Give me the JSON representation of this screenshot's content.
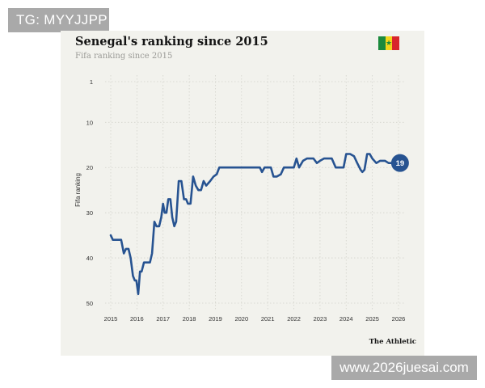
{
  "watermarks": {
    "top_left": "TG: MYYJJPP",
    "bottom_right": "www.2026juesai.com"
  },
  "brand": "The Athletic",
  "flag": {
    "stripes": [
      "#1a8a3c",
      "#f2d61b",
      "#d8262b"
    ],
    "star_color": "#1a8a3c"
  },
  "chart_data": {
    "type": "line",
    "title": "Senegal's ranking since 2015",
    "subtitle": "Fifa ranking since 2015",
    "xlabel": "",
    "ylabel": "Fifa ranking",
    "x_ticks": [
      "2015",
      "2016",
      "2017",
      "2018",
      "2019",
      "2020",
      "2021",
      "2022",
      "2023",
      "2024",
      "2025",
      "2026"
    ],
    "xlim": [
      2015,
      2026
    ],
    "y_ticks": [
      1,
      10,
      20,
      30,
      40,
      50
    ],
    "ylim": [
      1,
      50
    ],
    "y_inverted": true,
    "grid": true,
    "line_color": "#275391",
    "end_label": "19",
    "series": [
      {
        "points": [
          [
            2015.0,
            35
          ],
          [
            2015.08,
            36
          ],
          [
            2015.3,
            36
          ],
          [
            2015.4,
            36
          ],
          [
            2015.5,
            39
          ],
          [
            2015.58,
            38
          ],
          [
            2015.68,
            38
          ],
          [
            2015.76,
            40
          ],
          [
            2015.85,
            44
          ],
          [
            2015.92,
            45
          ],
          [
            2015.98,
            45
          ],
          [
            2016.05,
            48
          ],
          [
            2016.12,
            43
          ],
          [
            2016.18,
            43
          ],
          [
            2016.27,
            41
          ],
          [
            2016.4,
            41
          ],
          [
            2016.5,
            41
          ],
          [
            2016.58,
            39
          ],
          [
            2016.67,
            32
          ],
          [
            2016.75,
            33
          ],
          [
            2016.85,
            33
          ],
          [
            2016.93,
            31
          ],
          [
            2017.0,
            28
          ],
          [
            2017.06,
            30
          ],
          [
            2017.13,
            30
          ],
          [
            2017.2,
            27
          ],
          [
            2017.28,
            27
          ],
          [
            2017.35,
            31
          ],
          [
            2017.43,
            33
          ],
          [
            2017.5,
            32
          ],
          [
            2017.6,
            23
          ],
          [
            2017.7,
            23
          ],
          [
            2017.8,
            27
          ],
          [
            2017.88,
            27
          ],
          [
            2017.95,
            28
          ],
          [
            2018.05,
            28
          ],
          [
            2018.15,
            22
          ],
          [
            2018.25,
            24
          ],
          [
            2018.35,
            25
          ],
          [
            2018.45,
            25
          ],
          [
            2018.55,
            23
          ],
          [
            2018.65,
            24
          ],
          [
            2018.8,
            23
          ],
          [
            2018.93,
            22
          ],
          [
            2019.05,
            21.5
          ],
          [
            2019.15,
            20
          ],
          [
            2019.4,
            20
          ],
          [
            2019.7,
            20
          ],
          [
            2020.0,
            20
          ],
          [
            2020.4,
            20
          ],
          [
            2020.7,
            20
          ],
          [
            2020.78,
            21
          ],
          [
            2020.88,
            20
          ],
          [
            2021.0,
            20
          ],
          [
            2021.12,
            20
          ],
          [
            2021.22,
            22
          ],
          [
            2021.35,
            22
          ],
          [
            2021.5,
            21.5
          ],
          [
            2021.62,
            20
          ],
          [
            2021.75,
            20
          ],
          [
            2021.9,
            20
          ],
          [
            2022.0,
            20
          ],
          [
            2022.1,
            18
          ],
          [
            2022.2,
            20
          ],
          [
            2022.35,
            18.5
          ],
          [
            2022.5,
            18
          ],
          [
            2022.75,
            18
          ],
          [
            2022.88,
            19
          ],
          [
            2023.0,
            18.5
          ],
          [
            2023.15,
            18
          ],
          [
            2023.45,
            18
          ],
          [
            2023.6,
            20
          ],
          [
            2023.72,
            20
          ],
          [
            2023.9,
            20
          ],
          [
            2024.0,
            17
          ],
          [
            2024.15,
            17
          ],
          [
            2024.3,
            17.5
          ],
          [
            2024.42,
            19
          ],
          [
            2024.55,
            20.5
          ],
          [
            2024.62,
            21
          ],
          [
            2024.7,
            20.5
          ],
          [
            2024.8,
            17
          ],
          [
            2024.9,
            17
          ],
          [
            2025.0,
            18
          ],
          [
            2025.15,
            19
          ],
          [
            2025.3,
            18.5
          ],
          [
            2025.48,
            18.5
          ],
          [
            2025.62,
            19
          ],
          [
            2025.78,
            19
          ]
        ]
      }
    ]
  }
}
